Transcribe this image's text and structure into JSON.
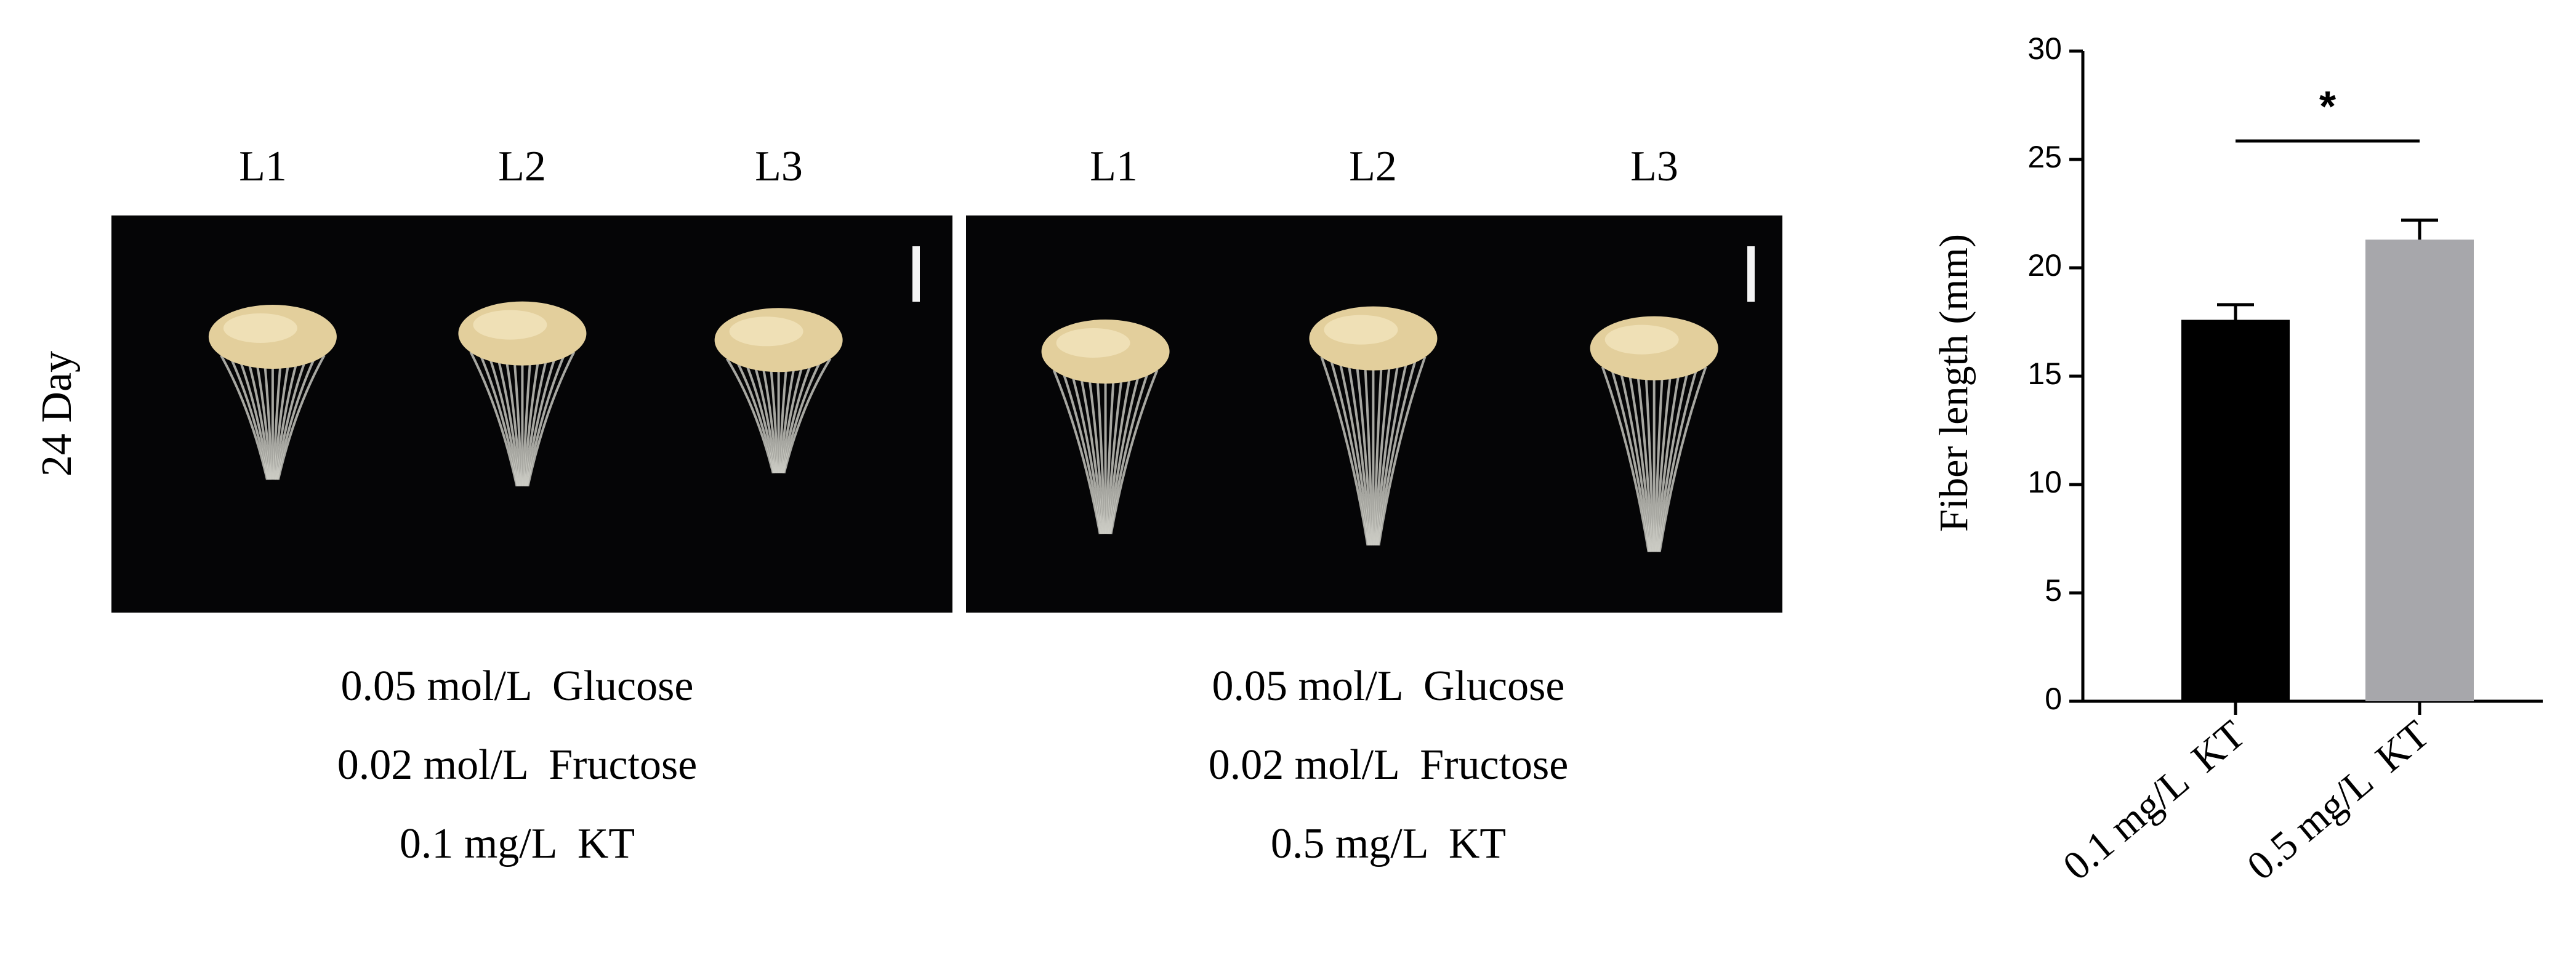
{
  "row_label": "24 Day",
  "panels": [
    {
      "columns": [
        "L1",
        "L2",
        "L3"
      ],
      "caption": [
        "0.05 mol/L  Glucose",
        "0.02 mol/L  Fructose",
        "0.1 mg/L  KT"
      ]
    },
    {
      "columns": [
        "L1",
        "L2",
        "L3"
      ],
      "caption": [
        "0.05 mol/L  Glucose",
        "0.02 mol/L  Fructose",
        "0.5 mg/L  KT"
      ]
    }
  ],
  "chart_data": {
    "type": "bar",
    "y_label": "Fiber length (mm)",
    "categories": [
      "0.1 mg/L  KT",
      "0.5 mg/L  KT"
    ],
    "values": [
      17.6,
      21.3
    ],
    "errors": [
      0.7,
      0.9
    ],
    "colors": [
      "#000000",
      "#a7a7ab"
    ],
    "ylim": [
      0,
      30
    ],
    "yticks": [
      0,
      5,
      10,
      15,
      20,
      25,
      30
    ],
    "annotation": "*"
  }
}
